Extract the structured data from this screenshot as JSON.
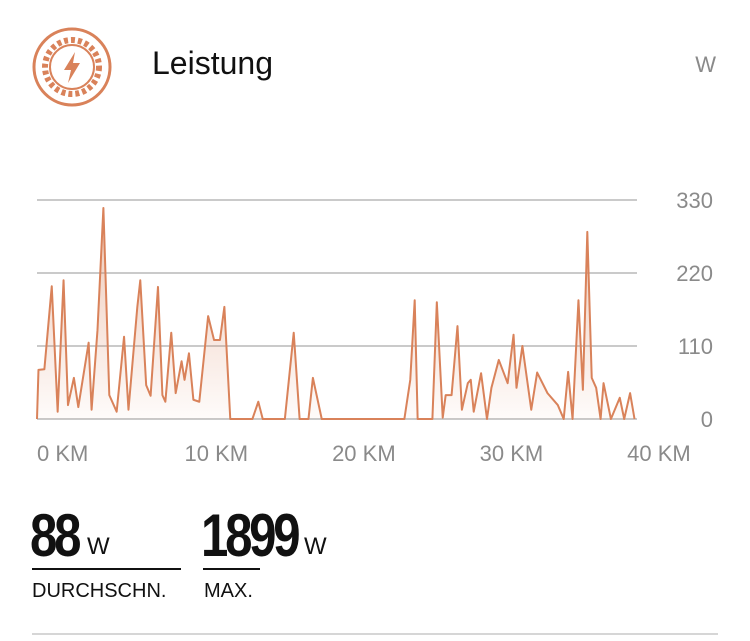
{
  "header": {
    "title": "Leistung",
    "unit": "W"
  },
  "chart_data": {
    "type": "area",
    "color": "#d9825a",
    "x": [
      0,
      0.1,
      0.5,
      1.0,
      1.4,
      1.8,
      2.1,
      2.5,
      2.8,
      3.5,
      3.7,
      4.1,
      4.5,
      4.9,
      5.4,
      5.9,
      6.2,
      6.8,
      7.0,
      7.4,
      7.7,
      8.2,
      8.5,
      8.7,
      9.1,
      9.4,
      9.8,
      10.0,
      10.3,
      10.6,
      11.0,
      11.6,
      12.0,
      12.4,
      12.7,
      13.1,
      14.6,
      15.0,
      15.3,
      16.8,
      17.4,
      17.8,
      18.4,
      18.7,
      19.3,
      24.9,
      25.3,
      25.6,
      25.8,
      26.8,
      27.1,
      27.5,
      27.7,
      28.1,
      28.5,
      28.8,
      29.2,
      29.4,
      29.6,
      30.1,
      30.5,
      30.8,
      31.3,
      31.9,
      32.3,
      32.5,
      32.9,
      33.5,
      33.9,
      34.6,
      35.3,
      35.7,
      36.0,
      36.3,
      36.7,
      37.0,
      37.3,
      37.6,
      37.9,
      38.2,
      38.4,
      38.9,
      39.5,
      39.8,
      40.2,
      40.5
    ],
    "values": [
      0,
      74,
      75,
      200,
      11,
      209,
      21,
      62,
      18,
      115,
      14,
      134,
      318,
      36,
      11,
      124,
      14,
      169,
      209,
      51,
      35,
      199,
      36,
      26,
      130,
      39,
      87,
      59,
      99,
      29,
      26,
      155,
      119,
      119,
      169,
      0,
      0,
      26,
      0,
      0,
      130,
      0,
      0,
      62,
      0,
      0,
      59,
      179,
      0,
      0,
      176,
      2,
      36,
      36,
      140,
      14,
      54,
      59,
      11,
      69,
      0,
      47,
      89,
      54,
      127,
      47,
      110,
      14,
      70,
      39,
      21,
      0,
      71,
      0,
      179,
      44,
      282,
      62,
      47,
      0,
      54,
      0,
      32,
      0,
      39,
      0
    ],
    "xlim": [
      0,
      40.6
    ],
    "xticks": [
      {
        "value": 0,
        "label": "0 KM"
      },
      {
        "value": 10,
        "label": "10 KM"
      },
      {
        "value": 20,
        "label": "20 KM"
      },
      {
        "value": 30,
        "label": "30 KM"
      },
      {
        "value": 40,
        "label": "40 KM"
      }
    ],
    "ylim": [
      0,
      330
    ],
    "yticks": [
      0,
      110,
      220,
      330
    ],
    "grid": true
  },
  "stats": [
    {
      "value": 88,
      "unit": "W",
      "label": "DURCHSCHN."
    },
    {
      "value": 1899,
      "unit": "W",
      "label": "MAX."
    }
  ]
}
